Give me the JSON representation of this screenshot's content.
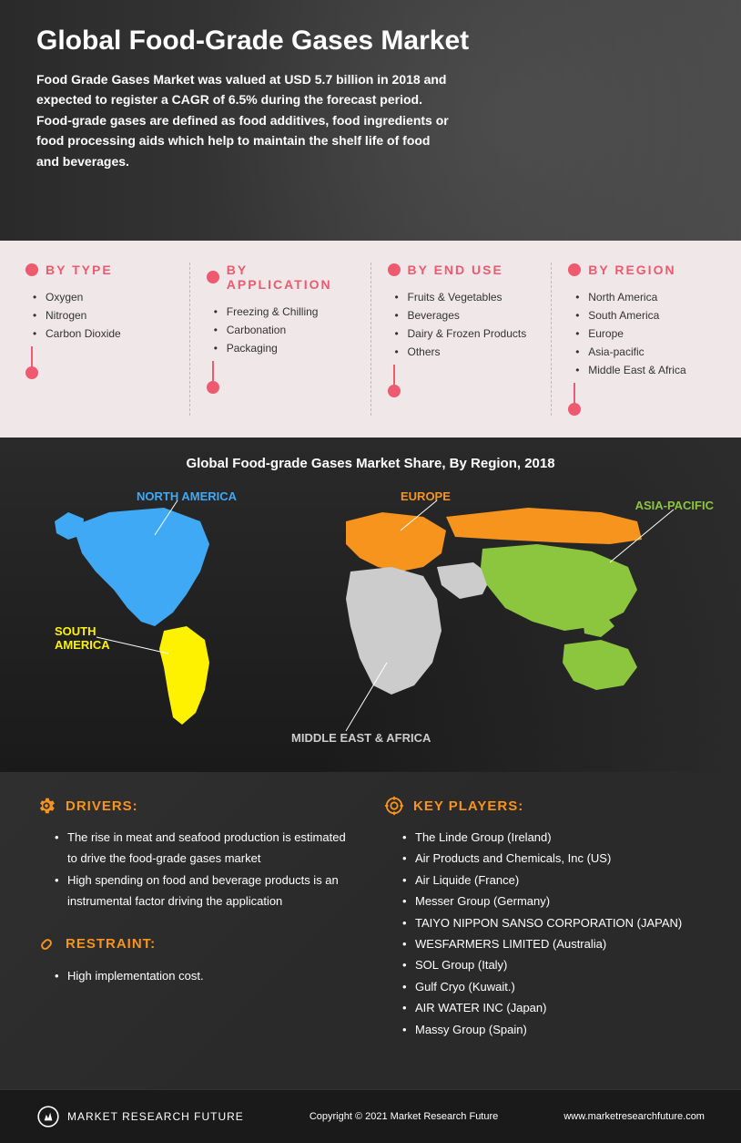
{
  "hero": {
    "title": "Global Food-Grade Gases Market",
    "description": "Food Grade Gases Market was valued at USD 5.7 billion in 2018 and expected to register a CAGR of 6.5% during the forecast period. Food-grade gases are defined as food additives, food ingredients or food processing aids which help to maintain the shelf life of food and beverages."
  },
  "categories": [
    {
      "title": "BY TYPE",
      "items": [
        "Oxygen",
        "Nitrogen",
        "Carbon Dioxide"
      ]
    },
    {
      "title": "BY APPLICATION",
      "items": [
        "Freezing & Chilling",
        "Carbonation",
        "Packaging"
      ]
    },
    {
      "title": "BY END USE",
      "items": [
        "Fruits & Vegetables",
        "Beverages",
        "Dairy & Frozen Products",
        "Others"
      ]
    },
    {
      "title": "BY REGION",
      "items": [
        "North America",
        "South America",
        "Europe",
        "Asia-pacific",
        "Middle East & Africa"
      ]
    }
  ],
  "accent": "#ee5a6f",
  "map": {
    "title": "Global Food-grade Gases Market Share, By Region, 2018",
    "regions": {
      "na": {
        "label": "NORTH AMERICA",
        "color": "#3fa9f5"
      },
      "eu": {
        "label": "EUROPE",
        "color": "#f7941e"
      },
      "ap": {
        "label": "ASIA-PACIFIC",
        "color": "#8cc63f"
      },
      "sa": {
        "label": "SOUTH AMERICA",
        "color": "#fff200"
      },
      "me": {
        "label": "MIDDLE EAST & AFRICA",
        "color": "#cccccc"
      }
    }
  },
  "drivers": {
    "title": "DRIVERS:",
    "items": [
      "The rise in meat and seafood production is estimated to drive the food-grade gases market",
      "High spending on food and beverage products is an instrumental factor driving the application"
    ]
  },
  "restraint": {
    "title": "RESTRAINT:",
    "items": [
      "High implementation cost."
    ]
  },
  "keyplayers": {
    "title": "KEY PLAYERS:",
    "items": [
      "The Linde Group (Ireland)",
      "Air Products and Chemicals, Inc (US)",
      "Air Liquide (France)",
      "Messer Group (Germany)",
      "TAIYO NIPPON SANSO CORPORATION (JAPAN)",
      "WESFARMERS LIMITED (Australia)",
      "SOL Group (Italy)",
      "Gulf Cryo (Kuwait.)",
      "AIR WATER INC (Japan)",
      "Massy Group (Spain)"
    ]
  },
  "footer": {
    "brand": "MARKET RESEARCH FUTURE",
    "copyright": "Copyright © 2021 Market Research Future",
    "url": "www.marketresearchfuture.com"
  },
  "heading_color": "#f7941e"
}
